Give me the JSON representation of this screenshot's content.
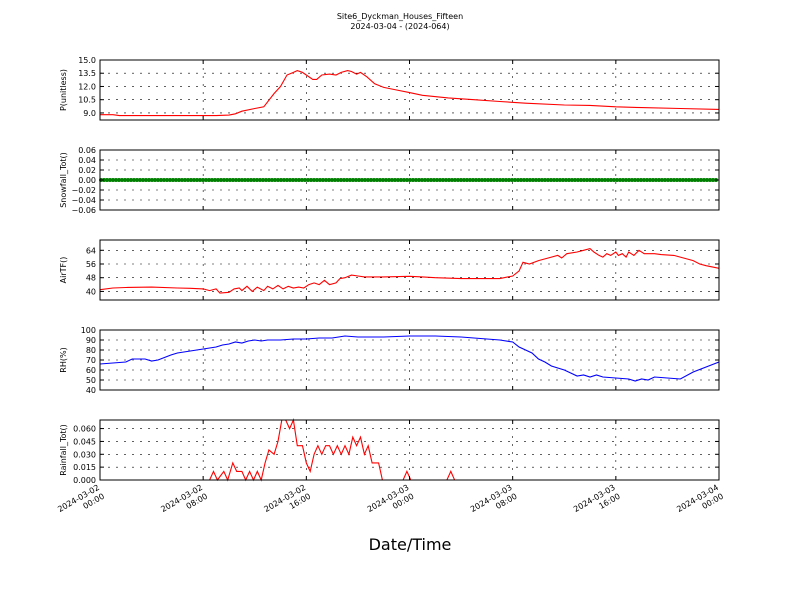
{
  "title": "Site6_Dyckman_Houses_Fifteen",
  "subtitle": "2024-03-04 - (2024-064)",
  "xlabel": "Date/Time",
  "chart_data": {
    "type": "line",
    "x_ticks": [
      {
        "h": 0,
        "line1": "2024-03-02",
        "line2": "00:00"
      },
      {
        "h": 8,
        "line1": "2024-03-02",
        "line2": "08:00"
      },
      {
        "h": 16,
        "line1": "2024-03-02",
        "line2": "16:00"
      },
      {
        "h": 24,
        "line1": "2024-03-03",
        "line2": "00:00"
      },
      {
        "h": 32,
        "line1": "2024-03-03",
        "line2": "08:00"
      },
      {
        "h": 40,
        "line1": "2024-03-03",
        "line2": "16:00"
      },
      {
        "h": 48,
        "line1": "2024-03-04",
        "line2": "00:00"
      }
    ],
    "xlim_hours": [
      0,
      48
    ],
    "panels": [
      {
        "ylabel": "P(unitless)",
        "color": "#ff0000",
        "ylim": [
          8.2,
          15.0
        ],
        "yticks": [
          9.0,
          10.5,
          12.0,
          13.5,
          15.0
        ],
        "tick_labels": [
          "9.0",
          "10.5",
          "12.0",
          "13.5",
          "15.0"
        ],
        "marker": false,
        "points": [
          [
            0,
            8.8
          ],
          [
            1,
            8.8
          ],
          [
            1.5,
            8.7
          ],
          [
            3,
            8.7
          ],
          [
            6,
            8.7
          ],
          [
            9,
            8.7
          ],
          [
            10,
            8.75
          ],
          [
            10.5,
            8.9
          ],
          [
            11,
            9.2
          ],
          [
            12,
            9.5
          ],
          [
            12.7,
            9.7
          ],
          [
            13.5,
            11.2
          ],
          [
            14,
            12.0
          ],
          [
            14.5,
            13.3
          ],
          [
            15,
            13.6
          ],
          [
            15.3,
            13.8
          ],
          [
            15.7,
            13.6
          ],
          [
            16,
            13.3
          ],
          [
            16.5,
            12.8
          ],
          [
            16.8,
            12.8
          ],
          [
            17.2,
            13.3
          ],
          [
            17.8,
            13.4
          ],
          [
            18.3,
            13.3
          ],
          [
            18.7,
            13.6
          ],
          [
            19.2,
            13.8
          ],
          [
            19.5,
            13.7
          ],
          [
            19.9,
            13.4
          ],
          [
            20.2,
            13.6
          ],
          [
            20.7,
            13.1
          ],
          [
            21.3,
            12.3
          ],
          [
            22,
            11.9
          ],
          [
            23,
            11.6
          ],
          [
            24,
            11.3
          ],
          [
            25,
            11.0
          ],
          [
            27,
            10.7
          ],
          [
            29,
            10.5
          ],
          [
            31,
            10.3
          ],
          [
            33,
            10.1
          ],
          [
            36,
            9.9
          ],
          [
            38,
            9.85
          ],
          [
            40,
            9.7
          ],
          [
            42,
            9.6
          ],
          [
            45,
            9.5
          ],
          [
            48,
            9.4
          ]
        ]
      },
      {
        "ylabel": "Snowfall_Tot()",
        "color": "#008000",
        "ylim": [
          -0.06,
          0.06
        ],
        "yticks": [
          -0.06,
          -0.04,
          -0.02,
          0.0,
          0.02,
          0.04,
          0.06
        ],
        "tick_labels": [
          "−0.06",
          "−0.04",
          "−0.02",
          "0.00",
          "0.02",
          "0.04",
          "0.06"
        ],
        "marker": true,
        "points": [
          [
            0,
            0
          ],
          [
            48,
            0
          ]
        ]
      },
      {
        "ylabel": "AirTF()",
        "color": "#ff0000",
        "ylim": [
          35,
          70
        ],
        "yticks": [
          40,
          48,
          56,
          64
        ],
        "tick_labels": [
          "40",
          "48",
          "56",
          "64"
        ],
        "marker": false,
        "points": [
          [
            0,
            41
          ],
          [
            1,
            42
          ],
          [
            2,
            42.3
          ],
          [
            4,
            42.5
          ],
          [
            6,
            42
          ],
          [
            7,
            41.8
          ],
          [
            8,
            41.5
          ],
          [
            8.5,
            40.5
          ],
          [
            9,
            41.5
          ],
          [
            9.3,
            39
          ],
          [
            10,
            39.5
          ],
          [
            10.4,
            41.5
          ],
          [
            10.8,
            42
          ],
          [
            11,
            40.5
          ],
          [
            11.4,
            43
          ],
          [
            11.8,
            40
          ],
          [
            12.2,
            42.5
          ],
          [
            12.7,
            40.5
          ],
          [
            13,
            43
          ],
          [
            13.4,
            41.5
          ],
          [
            13.8,
            43.5
          ],
          [
            14.2,
            41.5
          ],
          [
            14.6,
            43
          ],
          [
            15,
            42
          ],
          [
            15.4,
            42.5
          ],
          [
            15.8,
            42
          ],
          [
            16.2,
            44
          ],
          [
            16.6,
            45
          ],
          [
            17,
            44
          ],
          [
            17.4,
            46.5
          ],
          [
            17.8,
            44
          ],
          [
            18.3,
            45
          ],
          [
            18.6,
            47.5
          ],
          [
            19,
            48
          ],
          [
            19.5,
            49.5
          ],
          [
            20,
            49
          ],
          [
            20.5,
            48.5
          ],
          [
            22,
            48.5
          ],
          [
            24,
            48.8
          ],
          [
            25,
            48.5
          ],
          [
            26,
            48
          ],
          [
            28,
            47.5
          ],
          [
            30,
            47.5
          ],
          [
            31,
            47.5
          ],
          [
            32,
            49
          ],
          [
            32.5,
            52
          ],
          [
            32.8,
            57
          ],
          [
            33.3,
            56
          ],
          [
            34,
            58
          ],
          [
            35,
            60
          ],
          [
            35.5,
            61
          ],
          [
            35.8,
            59.5
          ],
          [
            36.2,
            62
          ],
          [
            37,
            63
          ],
          [
            37.5,
            64
          ],
          [
            38,
            65
          ],
          [
            38.3,
            63
          ],
          [
            38.7,
            61
          ],
          [
            39,
            60
          ],
          [
            39.3,
            62
          ],
          [
            39.6,
            61
          ],
          [
            40,
            63
          ],
          [
            40.2,
            61
          ],
          [
            40.5,
            62
          ],
          [
            40.8,
            60
          ],
          [
            41,
            63
          ],
          [
            41.4,
            61
          ],
          [
            41.8,
            64
          ],
          [
            42.2,
            62
          ],
          [
            43,
            62
          ],
          [
            43.5,
            61.5
          ],
          [
            44.5,
            61
          ],
          [
            45,
            60
          ],
          [
            46,
            58
          ],
          [
            46.5,
            56
          ],
          [
            47,
            55
          ],
          [
            48,
            53.5
          ]
        ]
      },
      {
        "ylabel": "RH(%)",
        "color": "#0000ff",
        "ylim": [
          40,
          100
        ],
        "yticks": [
          40,
          50,
          60,
          70,
          80,
          90,
          100
        ],
        "tick_labels": [
          "40",
          "50",
          "60",
          "70",
          "80",
          "90",
          "100"
        ],
        "marker": false,
        "points": [
          [
            0,
            66
          ],
          [
            1,
            67
          ],
          [
            2,
            68
          ],
          [
            2.5,
            71
          ],
          [
            3.5,
            71
          ],
          [
            4,
            69
          ],
          [
            4.5,
            70
          ],
          [
            5.5,
            75
          ],
          [
            6,
            77
          ],
          [
            7,
            79
          ],
          [
            8,
            81
          ],
          [
            9,
            83
          ],
          [
            9.5,
            85
          ],
          [
            10,
            86
          ],
          [
            10.5,
            88
          ],
          [
            11,
            87
          ],
          [
            11.5,
            89
          ],
          [
            12,
            90
          ],
          [
            12.5,
            89
          ],
          [
            13,
            90
          ],
          [
            14,
            90
          ],
          [
            15,
            91
          ],
          [
            16,
            91
          ],
          [
            17,
            92
          ],
          [
            18,
            92
          ],
          [
            19,
            94
          ],
          [
            20,
            93
          ],
          [
            22,
            93
          ],
          [
            24,
            94
          ],
          [
            26,
            94
          ],
          [
            28,
            93
          ],
          [
            30,
            91
          ],
          [
            31,
            90
          ],
          [
            32,
            88
          ],
          [
            32.5,
            83
          ],
          [
            33,
            80
          ],
          [
            33.5,
            77
          ],
          [
            34,
            71
          ],
          [
            34.5,
            68
          ],
          [
            35,
            64
          ],
          [
            35.5,
            62
          ],
          [
            36,
            60
          ],
          [
            36.5,
            57
          ],
          [
            37,
            54
          ],
          [
            37.5,
            55
          ],
          [
            38,
            53
          ],
          [
            38.5,
            55
          ],
          [
            39,
            53
          ],
          [
            40,
            52
          ],
          [
            41,
            51
          ],
          [
            41.5,
            49
          ],
          [
            42,
            51
          ],
          [
            42.5,
            50
          ],
          [
            43,
            53
          ],
          [
            44,
            52
          ],
          [
            45,
            51
          ],
          [
            46,
            58
          ],
          [
            47,
            63
          ],
          [
            48,
            68
          ]
        ]
      },
      {
        "ylabel": "Rainfall_Tot()",
        "color": "#ff0000",
        "ylim": [
          0,
          0.07
        ],
        "yticks": [
          0.0,
          0.015,
          0.03,
          0.045,
          0.06
        ],
        "tick_labels": [
          "0.000",
          "0.015",
          "0.030",
          "0.045",
          "0.060"
        ],
        "marker": false,
        "points": [
          [
            0,
            0
          ],
          [
            8.5,
            0
          ],
          [
            8.8,
            0.01
          ],
          [
            9.1,
            0
          ],
          [
            9.6,
            0.01
          ],
          [
            9.9,
            0
          ],
          [
            10.3,
            0.02
          ],
          [
            10.6,
            0.01
          ],
          [
            11,
            0.01
          ],
          [
            11.3,
            0
          ],
          [
            11.6,
            0.01
          ],
          [
            11.9,
            0
          ],
          [
            12.2,
            0.01
          ],
          [
            12.5,
            0
          ],
          [
            12.8,
            0.02
          ],
          [
            13.1,
            0.035
          ],
          [
            13.5,
            0.03
          ],
          [
            13.8,
            0.045
          ],
          [
            14.1,
            0.07
          ],
          [
            14.4,
            0.07
          ],
          [
            14.7,
            0.06
          ],
          [
            15,
            0.07
          ],
          [
            15.3,
            0.04
          ],
          [
            15.7,
            0.04
          ],
          [
            16,
            0.02
          ],
          [
            16.3,
            0.01
          ],
          [
            16.6,
            0.03
          ],
          [
            16.9,
            0.04
          ],
          [
            17.2,
            0.03
          ],
          [
            17.5,
            0.04
          ],
          [
            17.8,
            0.04
          ],
          [
            18.1,
            0.03
          ],
          [
            18.4,
            0.04
          ],
          [
            18.7,
            0.03
          ],
          [
            19,
            0.04
          ],
          [
            19.3,
            0.03
          ],
          [
            19.6,
            0.05
          ],
          [
            19.9,
            0.04
          ],
          [
            20.2,
            0.05
          ],
          [
            20.5,
            0.03
          ],
          [
            20.8,
            0.04
          ],
          [
            21.1,
            0.02
          ],
          [
            21.6,
            0.02
          ],
          [
            21.9,
            0
          ],
          [
            23.5,
            0
          ],
          [
            23.8,
            0.01
          ],
          [
            24.1,
            0
          ],
          [
            26.9,
            0
          ],
          [
            27.2,
            0.01
          ],
          [
            27.5,
            0
          ],
          [
            48,
            0
          ]
        ]
      }
    ]
  }
}
